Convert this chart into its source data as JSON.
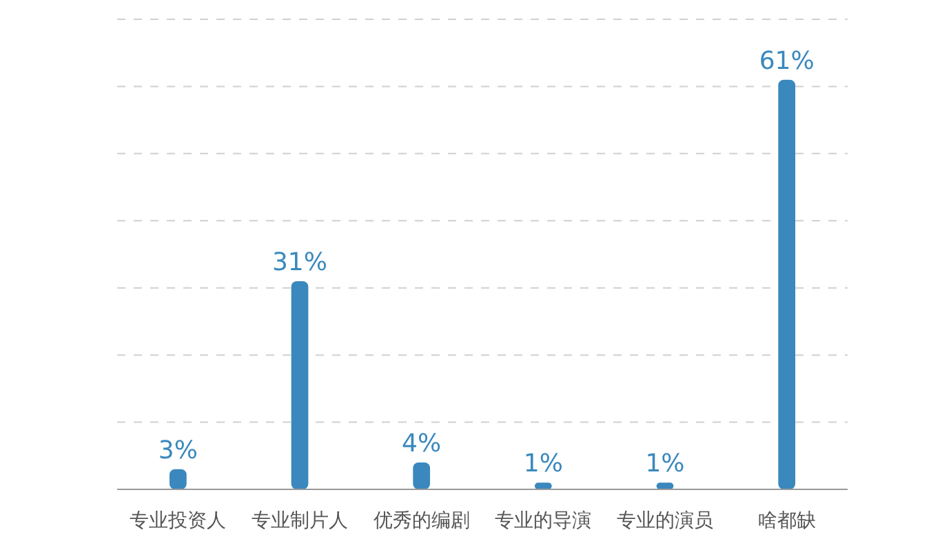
{
  "chart_data": {
    "type": "bar",
    "categories": [
      "专业投资人",
      "专业制片人",
      "优秀的编剧",
      "专业的导演",
      "专业的演员",
      "啥都缺"
    ],
    "values": [
      3,
      31,
      4,
      1,
      1,
      61
    ],
    "value_labels": [
      "3%",
      "31%",
      "4%",
      "1%",
      "1%",
      "61%"
    ],
    "color": "#3a88bd",
    "ylim": [
      0,
      70
    ],
    "yticks": [
      {
        "value": 10,
        "label": null
      },
      {
        "value": 20,
        "label": null
      },
      {
        "value": 30,
        "label": null
      },
      {
        "value": 40,
        "label": null
      },
      {
        "value": 50,
        "label": null
      },
      {
        "value": 60,
        "label": null
      },
      {
        "value": 70,
        "label": null
      }
    ],
    "grid": "y",
    "tick_labels": "x"
  }
}
